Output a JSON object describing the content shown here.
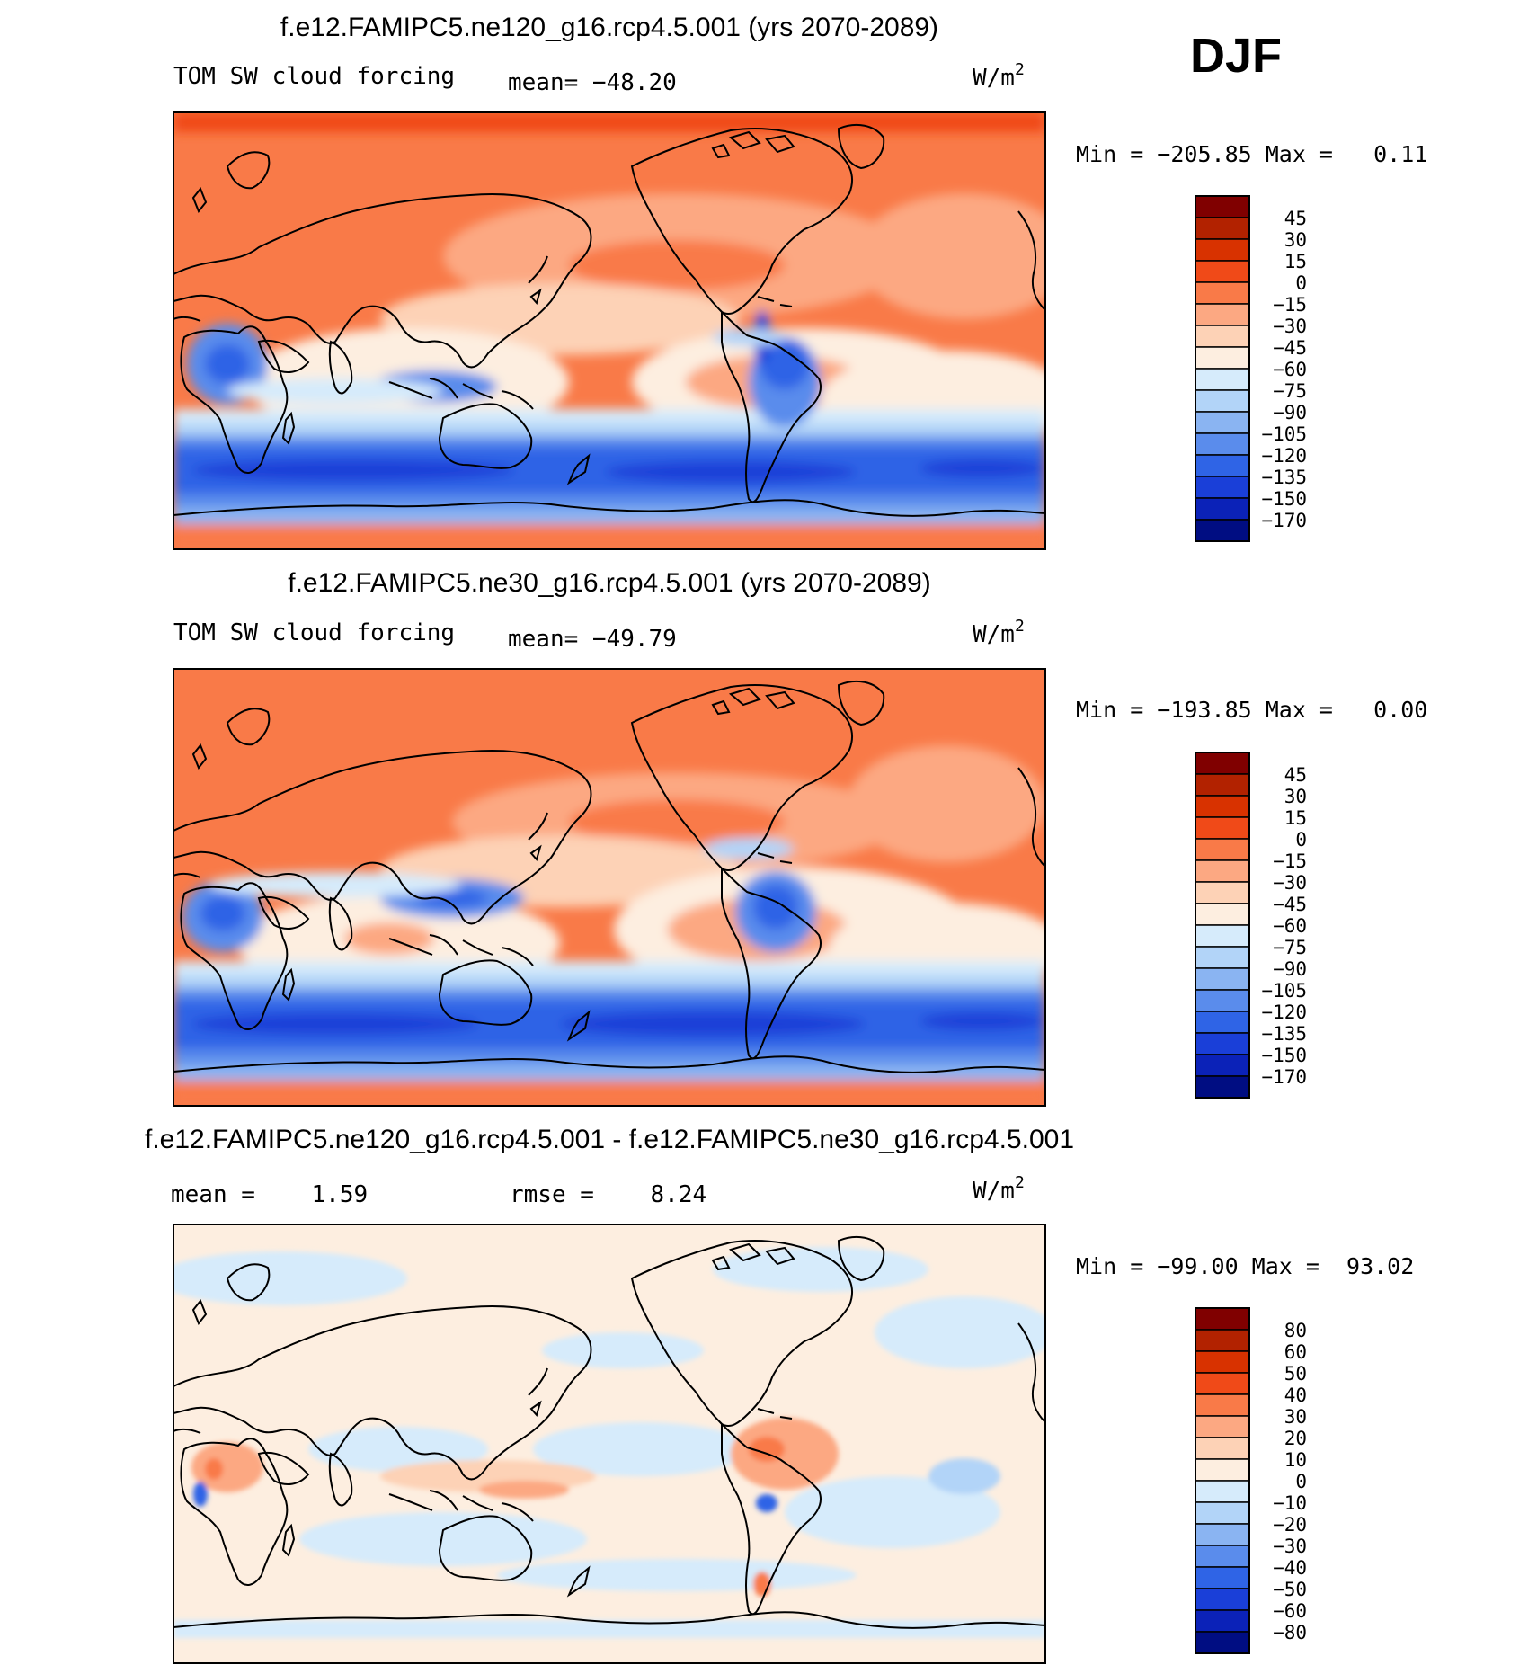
{
  "season": "DJF",
  "colors": {
    "frame": "#000000",
    "coast": "#000000",
    "warm_dark": "#7f0000",
    "cool_dark": "#00007f"
  },
  "panels": [
    {
      "title": "f.e12.FAMIPC5.ne120_g16.rcp4.5.001 (yrs 2070-2089)",
      "left_label": "TOM SW cloud forcing",
      "center_label": "mean= −48.20",
      "units_base": "W/m",
      "units_exp": "2",
      "minmax": "Min = −205.85 Max =   0.11",
      "colorbar": {
        "labels": [
          "45",
          "30",
          "15",
          "0",
          "−15",
          "−30",
          "−45",
          "−60",
          "−75",
          "−90",
          "−105",
          "−120",
          "−135",
          "−150",
          "−170"
        ],
        "colors": [
          "#800000",
          "#b22200",
          "#d83200",
          "#f04a18",
          "#f97a48",
          "#fca882",
          "#fdd2b6",
          "#fdeee0",
          "#d6ebfb",
          "#b2d4f8",
          "#8ab4f2",
          "#5a8cec",
          "#2f64e6",
          "#1a3fd8",
          "#0b22b8",
          "#000d82"
        ]
      },
      "map": {
        "variant": "abs",
        "description_key": "model ne120"
      }
    },
    {
      "title": "f.e12.FAMIPC5.ne30_g16.rcp4.5.001 (yrs 2070-2089)",
      "left_label": "TOM SW cloud forcing",
      "center_label": "mean= −49.79",
      "units_base": "W/m",
      "units_exp": "2",
      "minmax": "Min = −193.85 Max =   0.00",
      "colorbar": {
        "labels": [
          "45",
          "30",
          "15",
          "0",
          "−15",
          "−30",
          "−45",
          "−60",
          "−75",
          "−90",
          "−105",
          "−120",
          "−135",
          "−150",
          "−170"
        ],
        "colors": [
          "#800000",
          "#b22200",
          "#d83200",
          "#f04a18",
          "#f97a48",
          "#fca882",
          "#fdd2b6",
          "#fdeee0",
          "#d6ebfb",
          "#b2d4f8",
          "#8ab4f2",
          "#5a8cec",
          "#2f64e6",
          "#1a3fd8",
          "#0b22b8",
          "#000d82"
        ]
      },
      "map": {
        "variant": "abs2",
        "description_key": "model ne30"
      }
    },
    {
      "title": "f.e12.FAMIPC5.ne120_g16.rcp4.5.001 - f.e12.FAMIPC5.ne30_g16.rcp4.5.001",
      "left_label": "mean =    1.59",
      "center_label": "rmse =    8.24",
      "units_base": "W/m",
      "units_exp": "2",
      "minmax": "Min = −99.00 Max =  93.02",
      "colorbar": {
        "labels": [
          "80",
          "60",
          "50",
          "40",
          "30",
          "20",
          "10",
          "0",
          "−10",
          "−20",
          "−30",
          "−40",
          "−50",
          "−60",
          "−80"
        ],
        "colors": [
          "#800000",
          "#b22200",
          "#d83200",
          "#f04a18",
          "#f97a48",
          "#fca882",
          "#fdd2b6",
          "#fdeee0",
          "#d6ebfb",
          "#b2d4f8",
          "#8ab4f2",
          "#5a8cec",
          "#2f64e6",
          "#1a3fd8",
          "#0b22b8",
          "#000d82"
        ]
      },
      "map": {
        "variant": "diff",
        "description_key": "difference"
      }
    }
  ]
}
